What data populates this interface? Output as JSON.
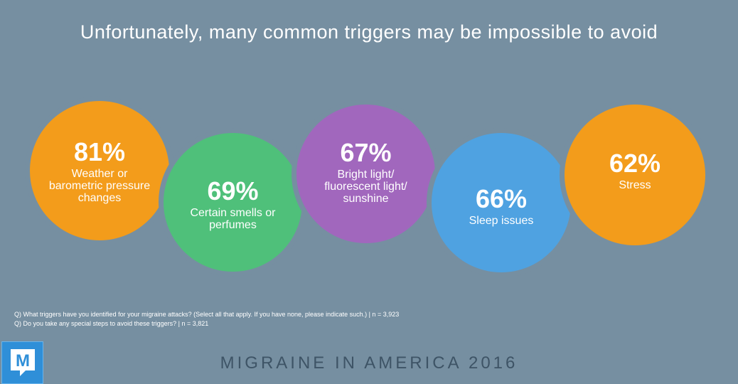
{
  "chart_data": {
    "type": "bubble",
    "title": "Unfortunately, many common triggers may be impossible to avoid",
    "categories": [
      "Weather or barometric pressure changes",
      "Certain smells or perfumes",
      "Bright light/ fluorescent light/ sunshine",
      "Sleep issues",
      "Stress"
    ],
    "values": [
      81,
      69,
      67,
      66,
      62
    ],
    "value_labels": [
      "81%",
      "69%",
      "67%",
      "66%",
      "62%"
    ],
    "unit": "%",
    "colors": [
      "#f39c1b",
      "#4fc07a",
      "#a167bd",
      "#4fa2e1",
      "#f39c1b"
    ]
  },
  "footnotes": [
    "Q) What triggers have you identified for your migraine attacks? (Select all that apply. If you have none, please indicate such.) | n = 3,923",
    "Q) Do you take any special steps to avoid these triggers? | n = 3,821"
  ],
  "logo": {
    "letter": "M",
    "icon": "migraine-m-logo-icon",
    "color": "#2f8fd8"
  },
  "brand": "MIGRAINE IN AMERICA 2016",
  "background": "#768fa1"
}
